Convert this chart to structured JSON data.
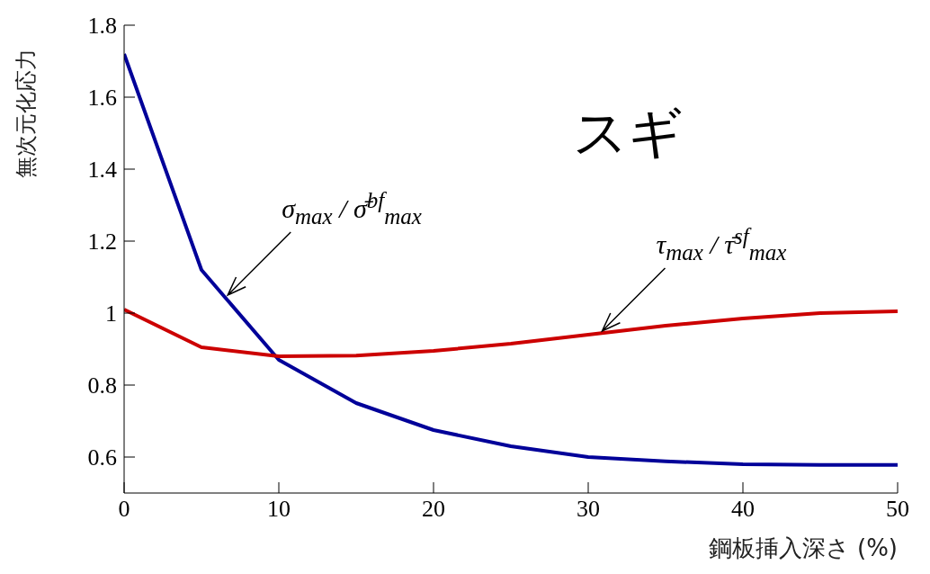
{
  "chart_data": {
    "type": "line",
    "xlabel": "鋼板挿入深さ (%)",
    "ylabel": "無次元化応力",
    "x": [
      0,
      5,
      10,
      15,
      20,
      25,
      30,
      35,
      40,
      45,
      50
    ],
    "series": [
      {
        "color": "#000099",
        "values": [
          1.72,
          1.12,
          0.87,
          0.75,
          0.675,
          0.63,
          0.6,
          0.588,
          0.58,
          0.578,
          0.578
        ]
      },
      {
        "color": "#cc0000",
        "values": [
          1.01,
          0.905,
          0.88,
          0.882,
          0.895,
          0.915,
          0.94,
          0.965,
          0.985,
          1.0,
          1.005
        ]
      }
    ],
    "xlim": [
      0,
      50
    ],
    "xticks": [
      0,
      10,
      20,
      30,
      40,
      50
    ],
    "ylim": [
      0.5,
      1.8
    ],
    "yticks": [
      0.6,
      0.8,
      1,
      1.2,
      1.4,
      1.6,
      1.8
    ],
    "grid": false,
    "legend": false,
    "marker": "none",
    "line_style": "solid",
    "annotations": [
      "スギ",
      {
        "text": "σ$_{max}$ / σ̄$^{bf}$$_{max}$",
        "x": 6.7,
        "y": 1.05
      },
      {
        "text": "τ$_{max}$ / τ̄$^{sf}$$_{max}$",
        "x": 30.9,
        "y": 0.95
      }
    ]
  }
}
